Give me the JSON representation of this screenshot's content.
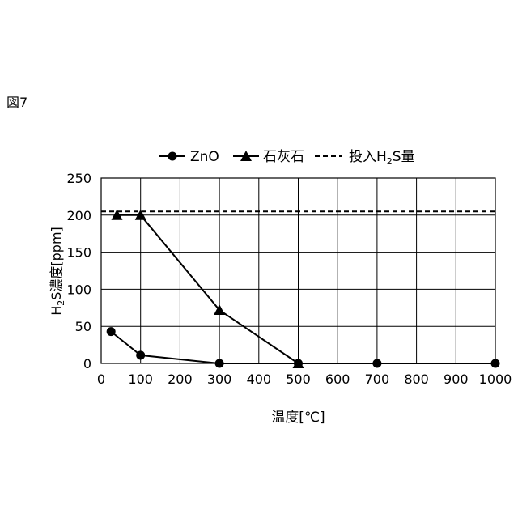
{
  "figure_label": "図7",
  "chart_data": {
    "type": "line",
    "xlabel": "温度[℃]",
    "ylabel_base": "H",
    "ylabel_sub": "2",
    "ylabel_rest": "S濃度[ppm]",
    "xlim": [
      0,
      1000
    ],
    "ylim": [
      0,
      250
    ],
    "xticks": [
      0,
      100,
      200,
      300,
      400,
      500,
      600,
      700,
      800,
      900,
      1000
    ],
    "yticks": [
      0,
      50,
      100,
      150,
      200,
      250
    ],
    "grid": true,
    "legend_position": "top",
    "series": [
      {
        "name": "ZnO",
        "marker": "circle",
        "line": "solid",
        "x": [
          25,
          100,
          300,
          500,
          700,
          1000
        ],
        "y": [
          43,
          11,
          0,
          0,
          0,
          0
        ]
      },
      {
        "name": "石灰石",
        "marker": "triangle",
        "line": "solid",
        "x": [
          40,
          100,
          300,
          500
        ],
        "y": [
          200,
          200,
          72,
          0
        ]
      }
    ],
    "reference_line": {
      "name_base": "投入H",
      "name_sub": "2",
      "name_rest": "S量",
      "line": "dashed",
      "y": 205
    }
  }
}
